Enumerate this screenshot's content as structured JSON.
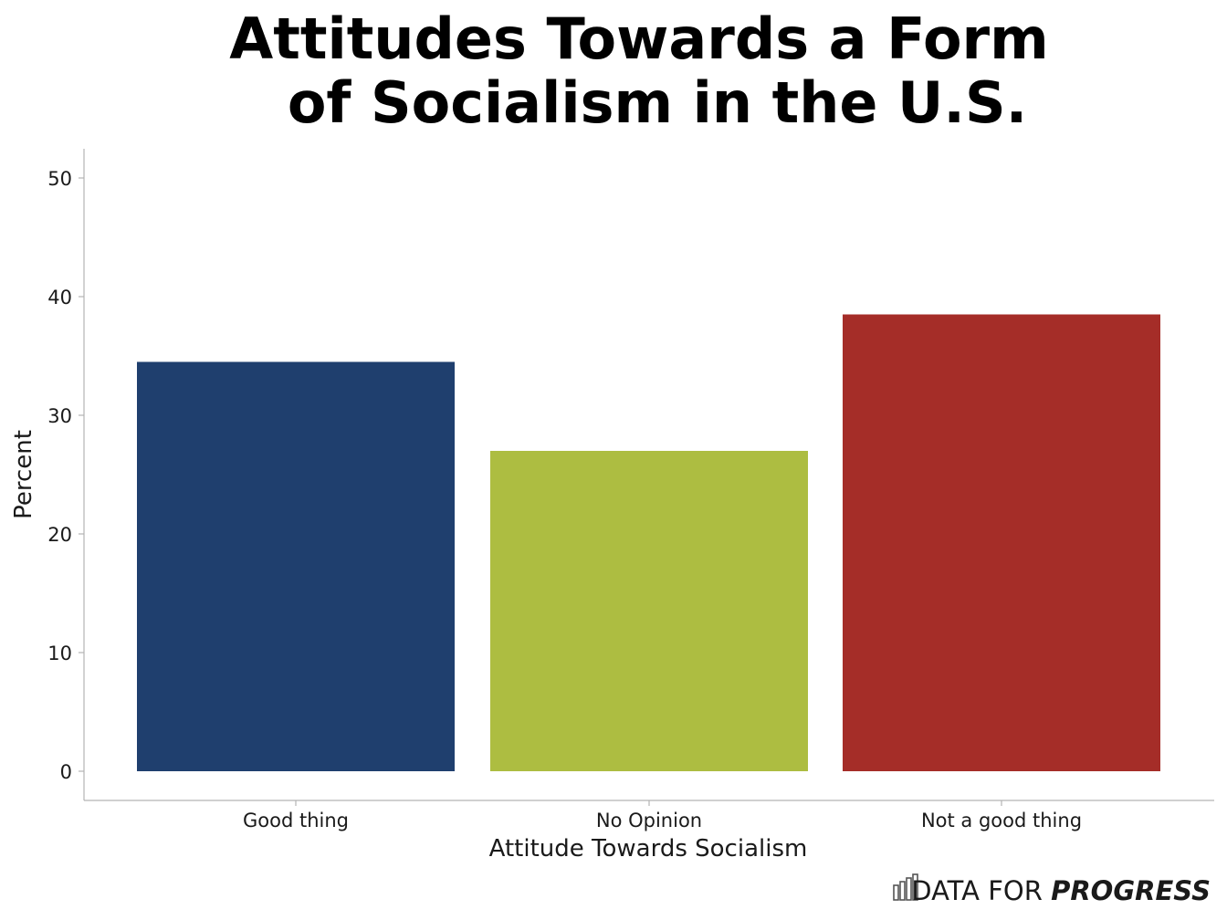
{
  "chart_data": {
    "type": "bar",
    "title_lines": [
      "Attitudes Towards a Form",
      "of Socialism in the U.S."
    ],
    "categories": [
      "Good thing",
      "No Opinion",
      "Not a good thing"
    ],
    "values": [
      34.5,
      27.0,
      38.5
    ],
    "colors": [
      "#1f3f6e",
      "#adbd41",
      "#a52d28"
    ],
    "xlabel": "Attitude Towards Socialism",
    "ylabel": "Percent",
    "ylim": [
      0,
      52.5
    ],
    "yticks": [
      0,
      10,
      20,
      30,
      40,
      50
    ],
    "grid": false
  },
  "branding": {
    "prefix": "DATA FOR",
    "emphasis": "PROGRESS",
    "icon": "bar-chart-logo-icon"
  }
}
